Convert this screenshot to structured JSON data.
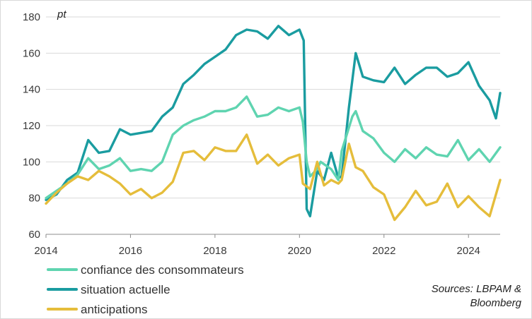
{
  "chart_data": {
    "type": "line",
    "title": "",
    "xlabel": "",
    "ylabel": "pt",
    "xlim": [
      2014.0,
      2024.75
    ],
    "ylim": [
      60,
      180
    ],
    "x_ticks": [
      "2014",
      "2016",
      "2018",
      "2020",
      "2022",
      "2024"
    ],
    "x_tick_values": [
      2014,
      2016,
      2018,
      2020,
      2022,
      2024
    ],
    "y_ticks": [
      "60",
      "80",
      "100",
      "120",
      "140",
      "160",
      "180"
    ],
    "y_tick_values": [
      60,
      80,
      100,
      120,
      140,
      160,
      180
    ],
    "legend_position": "bottom-left",
    "source": [
      "Sources: LBPAM &",
      "Bloomberg"
    ],
    "series": [
      {
        "name": "confiance des consommateurs",
        "color": "#5fd4b0",
        "x": [
          2014.0,
          2014.25,
          2014.5,
          2014.75,
          2015.0,
          2015.25,
          2015.5,
          2015.75,
          2016.0,
          2016.25,
          2016.5,
          2016.75,
          2017.0,
          2017.25,
          2017.5,
          2017.75,
          2018.0,
          2018.25,
          2018.5,
          2018.75,
          2019.0,
          2019.25,
          2019.5,
          2019.75,
          2020.0,
          2020.08,
          2020.17,
          2020.25,
          2020.42,
          2020.5,
          2020.75,
          2020.92,
          2021.0,
          2021.25,
          2021.33,
          2021.5,
          2021.75,
          2022.0,
          2022.25,
          2022.5,
          2022.75,
          2023.0,
          2023.25,
          2023.5,
          2023.75,
          2024.0,
          2024.25,
          2024.5,
          2024.75
        ],
        "values": [
          80,
          84,
          88,
          93,
          102,
          96,
          98,
          102,
          95,
          96,
          95,
          100,
          115,
          120,
          123,
          125,
          128,
          128,
          130,
          136,
          125,
          126,
          130,
          128,
          130,
          122,
          100,
          92,
          96,
          100,
          96,
          90,
          106,
          125,
          128,
          117,
          113,
          105,
          100,
          107,
          102,
          108,
          104,
          103,
          112,
          101,
          107,
          100,
          108
        ]
      },
      {
        "name": "situation actuelle",
        "color": "#1a9ca0",
        "x": [
          2014.0,
          2014.25,
          2014.5,
          2014.75,
          2015.0,
          2015.25,
          2015.5,
          2015.75,
          2016.0,
          2016.25,
          2016.5,
          2016.75,
          2017.0,
          2017.25,
          2017.5,
          2017.75,
          2018.0,
          2018.25,
          2018.5,
          2018.75,
          2019.0,
          2019.25,
          2019.5,
          2019.75,
          2020.0,
          2020.1,
          2020.17,
          2020.25,
          2020.42,
          2020.58,
          2020.75,
          2020.92,
          2021.0,
          2021.17,
          2021.33,
          2021.5,
          2021.75,
          2022.0,
          2022.25,
          2022.5,
          2022.75,
          2023.0,
          2023.25,
          2023.5,
          2023.75,
          2024.0,
          2024.25,
          2024.5,
          2024.65,
          2024.75
        ],
        "values": [
          79,
          82,
          90,
          94,
          112,
          105,
          106,
          118,
          115,
          116,
          117,
          125,
          130,
          143,
          148,
          154,
          158,
          162,
          170,
          173,
          172,
          168,
          175,
          170,
          173,
          167,
          74,
          70,
          95,
          90,
          105,
          91,
          92,
          130,
          160,
          147,
          145,
          144,
          152,
          143,
          148,
          152,
          152,
          147,
          149,
          155,
          142,
          134,
          124,
          138
        ]
      },
      {
        "name": "anticipations",
        "color": "#e5bd3b",
        "x": [
          2014.0,
          2014.25,
          2014.5,
          2014.75,
          2015.0,
          2015.25,
          2015.5,
          2015.75,
          2016.0,
          2016.25,
          2016.5,
          2016.75,
          2017.0,
          2017.25,
          2017.5,
          2017.75,
          2018.0,
          2018.25,
          2018.5,
          2018.75,
          2019.0,
          2019.25,
          2019.5,
          2019.75,
          2020.0,
          2020.08,
          2020.25,
          2020.42,
          2020.58,
          2020.75,
          2020.92,
          2021.0,
          2021.17,
          2021.33,
          2021.5,
          2021.75,
          2022.0,
          2022.25,
          2022.5,
          2022.75,
          2023.0,
          2023.25,
          2023.5,
          2023.75,
          2024.0,
          2024.25,
          2024.5,
          2024.75
        ],
        "values": [
          77,
          83,
          88,
          92,
          90,
          95,
          92,
          88,
          82,
          85,
          80,
          83,
          89,
          105,
          106,
          101,
          108,
          106,
          106,
          115,
          99,
          104,
          98,
          102,
          104,
          88,
          85,
          100,
          87,
          90,
          88,
          90,
          110,
          97,
          95,
          86,
          82,
          68,
          75,
          84,
          76,
          78,
          88,
          75,
          81,
          75,
          70,
          90
        ]
      }
    ]
  }
}
